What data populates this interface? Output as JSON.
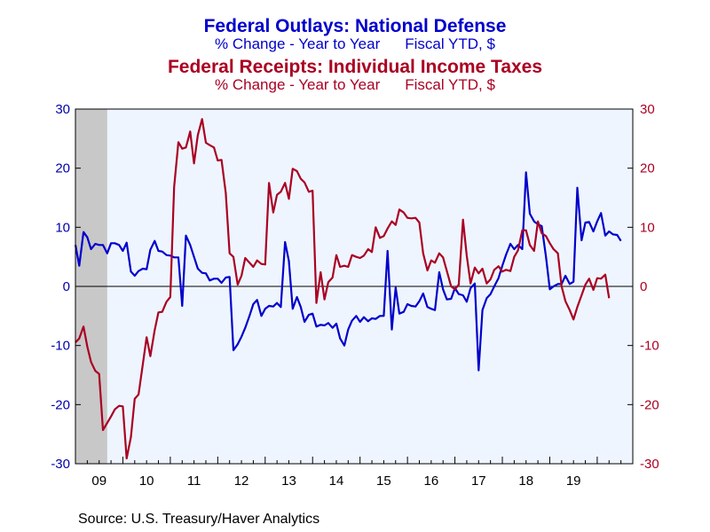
{
  "chart_data": {
    "type": "line",
    "titles": [
      {
        "title": "Federal Outlays: National Defense",
        "subtitle_left": "% Change - Year to Year",
        "subtitle_right": "Fiscal YTD, $"
      },
      {
        "title": "Federal Receipts: Individual Income Taxes",
        "subtitle_left": "% Change - Year to Year",
        "subtitle_right": "Fiscal YTD, $"
      }
    ],
    "x_tick_labels": [
      "09",
      "10",
      "11",
      "12",
      "13",
      "14",
      "15",
      "16",
      "17",
      "18",
      "19"
    ],
    "x_range": [
      2008.0,
      2019.75
    ],
    "ylim": [
      -30,
      30
    ],
    "y_ticks": [
      -30,
      -20,
      -10,
      0,
      10,
      20,
      30
    ],
    "left_axis_color": "#0000aa",
    "right_axis_color": "#aa0022",
    "recession_shading": {
      "start": 2008.0,
      "end": 2008.67,
      "color": "#c8c8c8"
    },
    "plot_background": "#eef5ff",
    "zero_line": true,
    "series": [
      {
        "name": "Federal Outlays: National Defense",
        "color": "#0000cc",
        "points": [
          [
            2008.0,
            7.0
          ],
          [
            2008.08,
            3.5
          ],
          [
            2008.17,
            9.2
          ],
          [
            2008.25,
            8.3
          ],
          [
            2008.33,
            6.3
          ],
          [
            2008.42,
            7.2
          ],
          [
            2008.5,
            7.0
          ],
          [
            2008.58,
            7.0
          ],
          [
            2008.67,
            5.6
          ],
          [
            2008.75,
            7.3
          ],
          [
            2008.83,
            7.3
          ],
          [
            2008.92,
            7.0
          ],
          [
            2009.0,
            6.0
          ],
          [
            2009.08,
            7.4
          ],
          [
            2009.17,
            2.5
          ],
          [
            2009.25,
            1.8
          ],
          [
            2009.33,
            2.6
          ],
          [
            2009.42,
            3.0
          ],
          [
            2009.5,
            2.9
          ],
          [
            2009.58,
            6.2
          ],
          [
            2009.67,
            7.7
          ],
          [
            2009.75,
            6.0
          ],
          [
            2009.83,
            5.9
          ],
          [
            2009.92,
            5.3
          ],
          [
            2010.0,
            5.2
          ],
          [
            2010.08,
            4.9
          ],
          [
            2010.17,
            4.9
          ],
          [
            2010.25,
            -3.3
          ],
          [
            2010.33,
            8.6
          ],
          [
            2010.42,
            7.0
          ],
          [
            2010.5,
            5.0
          ],
          [
            2010.58,
            3.0
          ],
          [
            2010.67,
            2.3
          ],
          [
            2010.75,
            2.2
          ],
          [
            2010.83,
            1.0
          ],
          [
            2010.92,
            1.3
          ],
          [
            2011.0,
            1.3
          ],
          [
            2011.08,
            0.6
          ],
          [
            2011.17,
            1.5
          ],
          [
            2011.25,
            1.6
          ],
          [
            2011.33,
            -10.8
          ],
          [
            2011.42,
            -9.8
          ],
          [
            2011.5,
            -8.5
          ],
          [
            2011.58,
            -7.0
          ],
          [
            2011.67,
            -5.0
          ],
          [
            2011.75,
            -3.0
          ],
          [
            2011.83,
            -2.3
          ],
          [
            2011.92,
            -5.0
          ],
          [
            2012.0,
            -3.8
          ],
          [
            2012.08,
            -3.3
          ],
          [
            2012.17,
            -3.4
          ],
          [
            2012.25,
            -2.8
          ],
          [
            2012.33,
            -3.5
          ],
          [
            2012.42,
            7.5
          ],
          [
            2012.5,
            4.3
          ],
          [
            2012.58,
            -3.8
          ],
          [
            2012.67,
            -1.8
          ],
          [
            2012.75,
            -3.5
          ],
          [
            2012.83,
            -6.0
          ],
          [
            2012.92,
            -4.8
          ],
          [
            2013.0,
            -4.6
          ],
          [
            2013.08,
            -6.8
          ],
          [
            2013.17,
            -6.5
          ],
          [
            2013.25,
            -6.6
          ],
          [
            2013.33,
            -6.2
          ],
          [
            2013.42,
            -7.0
          ],
          [
            2013.5,
            -6.3
          ],
          [
            2013.58,
            -8.8
          ],
          [
            2013.67,
            -10.0
          ],
          [
            2013.75,
            -7.3
          ],
          [
            2013.83,
            -5.8
          ],
          [
            2013.92,
            -5.0
          ],
          [
            2014.0,
            -6.0
          ],
          [
            2014.08,
            -5.2
          ],
          [
            2014.17,
            -5.9
          ],
          [
            2014.25,
            -5.4
          ],
          [
            2014.33,
            -5.5
          ],
          [
            2014.42,
            -5.0
          ],
          [
            2014.5,
            -5.0
          ],
          [
            2014.58,
            6.0
          ],
          [
            2014.67,
            -7.3
          ],
          [
            2014.75,
            -0.2
          ],
          [
            2014.83,
            -4.6
          ],
          [
            2014.92,
            -4.3
          ],
          [
            2015.0,
            -3.0
          ],
          [
            2015.08,
            -3.3
          ],
          [
            2015.17,
            -3.4
          ],
          [
            2015.25,
            -2.5
          ],
          [
            2015.33,
            -1.2
          ],
          [
            2015.42,
            -3.5
          ],
          [
            2015.5,
            -3.8
          ],
          [
            2015.58,
            -4.0
          ],
          [
            2015.67,
            2.4
          ],
          [
            2015.75,
            -0.5
          ],
          [
            2015.83,
            -2.2
          ],
          [
            2015.92,
            -2.1
          ],
          [
            2016.0,
            -0.3
          ],
          [
            2016.08,
            -1.3
          ],
          [
            2016.17,
            -1.5
          ],
          [
            2016.25,
            -2.6
          ],
          [
            2016.33,
            -0.3
          ],
          [
            2016.42,
            0.5
          ],
          [
            2016.5,
            -14.2
          ],
          [
            2016.58,
            -4.0
          ],
          [
            2016.67,
            -2.0
          ],
          [
            2016.75,
            -1.3
          ],
          [
            2016.83,
            0.0
          ],
          [
            2016.92,
            1.4
          ],
          [
            2017.0,
            3.5
          ],
          [
            2017.08,
            5.4
          ],
          [
            2017.17,
            7.2
          ],
          [
            2017.25,
            6.3
          ],
          [
            2017.33,
            7.0
          ],
          [
            2017.42,
            6.3
          ],
          [
            2017.5,
            19.3
          ],
          [
            2017.58,
            12.3
          ],
          [
            2017.67,
            11.0
          ],
          [
            2017.75,
            10.5
          ],
          [
            2017.83,
            10.2
          ],
          [
            2017.92,
            5.0
          ],
          [
            2018.0,
            -0.5
          ],
          [
            2018.08,
            0.0
          ],
          [
            2018.17,
            0.4
          ],
          [
            2018.25,
            0.4
          ],
          [
            2018.33,
            1.8
          ],
          [
            2018.42,
            0.4
          ],
          [
            2018.5,
            0.8
          ],
          [
            2018.58,
            16.7
          ],
          [
            2018.67,
            7.8
          ],
          [
            2018.75,
            10.8
          ],
          [
            2018.83,
            10.9
          ],
          [
            2018.92,
            9.3
          ],
          [
            2019.0,
            11.0
          ],
          [
            2019.08,
            12.4
          ],
          [
            2019.17,
            8.6
          ],
          [
            2019.25,
            9.3
          ],
          [
            2019.33,
            8.8
          ],
          [
            2019.42,
            8.7
          ],
          [
            2019.5,
            7.7
          ]
        ]
      },
      {
        "name": "Federal Receipts: Individual Income Taxes",
        "color": "#aa0022",
        "points": [
          [
            2008.0,
            -9.5
          ],
          [
            2008.08,
            -8.8
          ],
          [
            2008.17,
            -6.8
          ],
          [
            2008.25,
            -10.2
          ],
          [
            2008.33,
            -12.8
          ],
          [
            2008.42,
            -14.3
          ],
          [
            2008.5,
            -14.8
          ],
          [
            2008.58,
            -24.3
          ],
          [
            2008.67,
            -23.1
          ],
          [
            2008.75,
            -22.0
          ],
          [
            2008.83,
            -20.8
          ],
          [
            2008.92,
            -20.2
          ],
          [
            2009.0,
            -20.3
          ],
          [
            2009.08,
            -29.1
          ],
          [
            2009.17,
            -25.5
          ],
          [
            2009.25,
            -19.0
          ],
          [
            2009.33,
            -18.3
          ],
          [
            2009.42,
            -13.2
          ],
          [
            2009.5,
            -8.6
          ],
          [
            2009.58,
            -11.8
          ],
          [
            2009.67,
            -7.4
          ],
          [
            2009.75,
            -4.4
          ],
          [
            2009.83,
            -4.3
          ],
          [
            2009.92,
            -2.6
          ],
          [
            2010.0,
            -1.8
          ],
          [
            2010.08,
            16.8
          ],
          [
            2010.17,
            24.4
          ],
          [
            2010.25,
            23.3
          ],
          [
            2010.33,
            23.5
          ],
          [
            2010.42,
            26.2
          ],
          [
            2010.5,
            20.8
          ],
          [
            2010.58,
            25.6
          ],
          [
            2010.67,
            28.3
          ],
          [
            2010.75,
            24.3
          ],
          [
            2010.83,
            23.9
          ],
          [
            2010.92,
            23.5
          ],
          [
            2011.0,
            21.3
          ],
          [
            2011.08,
            21.4
          ],
          [
            2011.17,
            15.8
          ],
          [
            2011.25,
            5.6
          ],
          [
            2011.33,
            5.0
          ],
          [
            2011.42,
            0.3
          ],
          [
            2011.5,
            1.8
          ],
          [
            2011.58,
            4.8
          ],
          [
            2011.67,
            4.0
          ],
          [
            2011.75,
            3.3
          ],
          [
            2011.83,
            4.4
          ],
          [
            2011.92,
            3.8
          ],
          [
            2012.0,
            3.7
          ],
          [
            2012.08,
            17.5
          ],
          [
            2012.17,
            12.5
          ],
          [
            2012.25,
            15.5
          ],
          [
            2012.33,
            16.0
          ],
          [
            2012.42,
            17.5
          ],
          [
            2012.5,
            14.8
          ],
          [
            2012.58,
            19.9
          ],
          [
            2012.67,
            19.5
          ],
          [
            2012.75,
            18.2
          ],
          [
            2012.83,
            17.6
          ],
          [
            2012.92,
            16.0
          ],
          [
            2013.0,
            16.2
          ],
          [
            2013.08,
            -2.8
          ],
          [
            2013.17,
            2.4
          ],
          [
            2013.25,
            -2.2
          ],
          [
            2013.33,
            0.7
          ],
          [
            2013.42,
            1.5
          ],
          [
            2013.5,
            5.3
          ],
          [
            2013.58,
            3.3
          ],
          [
            2013.67,
            3.5
          ],
          [
            2013.75,
            3.3
          ],
          [
            2013.83,
            5.3
          ],
          [
            2013.92,
            5.0
          ],
          [
            2014.0,
            4.8
          ],
          [
            2014.08,
            5.2
          ],
          [
            2014.17,
            6.3
          ],
          [
            2014.25,
            5.8
          ],
          [
            2014.33,
            10.0
          ],
          [
            2014.42,
            8.2
          ],
          [
            2014.5,
            8.5
          ],
          [
            2014.58,
            9.8
          ],
          [
            2014.67,
            11.0
          ],
          [
            2014.75,
            10.4
          ],
          [
            2014.83,
            13.0
          ],
          [
            2014.92,
            12.5
          ],
          [
            2015.0,
            11.6
          ],
          [
            2015.08,
            11.5
          ],
          [
            2015.17,
            11.6
          ],
          [
            2015.25,
            10.8
          ],
          [
            2015.33,
            5.6
          ],
          [
            2015.42,
            2.7
          ],
          [
            2015.5,
            4.4
          ],
          [
            2015.58,
            4.0
          ],
          [
            2015.67,
            5.6
          ],
          [
            2015.75,
            4.9
          ],
          [
            2015.83,
            2.6
          ],
          [
            2015.92,
            0.0
          ],
          [
            2016.0,
            -0.5
          ],
          [
            2016.08,
            0.3
          ],
          [
            2016.17,
            11.3
          ],
          [
            2016.25,
            5.2
          ],
          [
            2016.33,
            0.5
          ],
          [
            2016.42,
            3.2
          ],
          [
            2016.5,
            2.2
          ],
          [
            2016.58,
            3.0
          ],
          [
            2016.67,
            0.5
          ],
          [
            2016.75,
            1.2
          ],
          [
            2016.83,
            2.8
          ],
          [
            2016.92,
            3.4
          ],
          [
            2017.0,
            2.5
          ],
          [
            2017.08,
            2.8
          ],
          [
            2017.17,
            2.6
          ],
          [
            2017.25,
            5.0
          ],
          [
            2017.33,
            6.1
          ],
          [
            2017.42,
            9.5
          ],
          [
            2017.5,
            9.5
          ],
          [
            2017.58,
            7.0
          ],
          [
            2017.67,
            6.0
          ],
          [
            2017.75,
            11.0
          ],
          [
            2017.83,
            9.0
          ],
          [
            2017.92,
            8.5
          ],
          [
            2018.0,
            7.3
          ],
          [
            2018.08,
            6.3
          ],
          [
            2018.17,
            5.6
          ],
          [
            2018.25,
            0.0
          ],
          [
            2018.33,
            -2.5
          ],
          [
            2018.42,
            -4.0
          ],
          [
            2018.5,
            -5.6
          ],
          [
            2018.58,
            -3.5
          ],
          [
            2018.67,
            -1.5
          ],
          [
            2018.75,
            0.3
          ],
          [
            2018.83,
            1.3
          ],
          [
            2018.92,
            -0.6
          ],
          [
            2019.0,
            1.4
          ],
          [
            2019.08,
            1.3
          ],
          [
            2019.17,
            2.0
          ],
          [
            2019.25,
            -2.0
          ]
        ]
      }
    ],
    "source": "Source:  U.S. Treasury/Haver Analytics"
  }
}
